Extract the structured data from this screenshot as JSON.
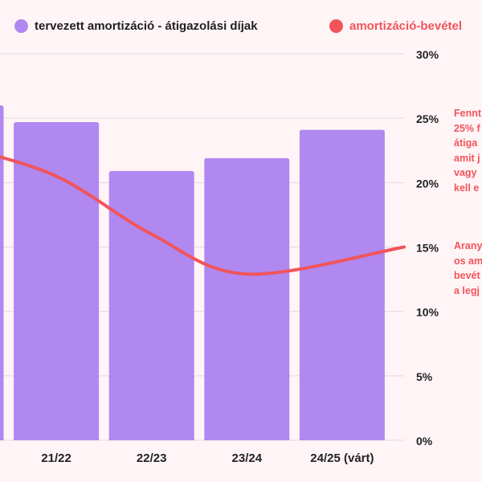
{
  "legend": {
    "bars_label": "tervezett amortizáció - átigazolási díjak",
    "line_label": "amortizáció-bevétel",
    "bars_color": "#b088f0",
    "line_color": "#f2545b"
  },
  "notes": {
    "note1": [
      "Fennt",
      "25% f",
      "átiga",
      "amit j",
      "vagy",
      "kell e"
    ],
    "note2": [
      "Arany",
      "os am",
      "bevét",
      "a legj"
    ]
  },
  "chart_data": {
    "type": "bar",
    "categories": [
      "",
      "21/22",
      "22/23",
      "23/24",
      "24/25 (várt)"
    ],
    "series": [
      {
        "name": "tervezett amortizáció - átigazolási díjak",
        "type": "bar",
        "values": [
          26,
          24.7,
          20.9,
          21.9,
          24.1
        ]
      },
      {
        "name": "amortizáció-bevétel",
        "type": "line",
        "values": [
          22.8,
          20.5,
          16,
          12.9,
          15
        ]
      }
    ],
    "y_axis": {
      "side": "right",
      "min": 0,
      "max": 30,
      "ticks": [
        "0%",
        "5%",
        "10%",
        "15%",
        "20%",
        "25%",
        "30%"
      ]
    },
    "grid": true
  }
}
